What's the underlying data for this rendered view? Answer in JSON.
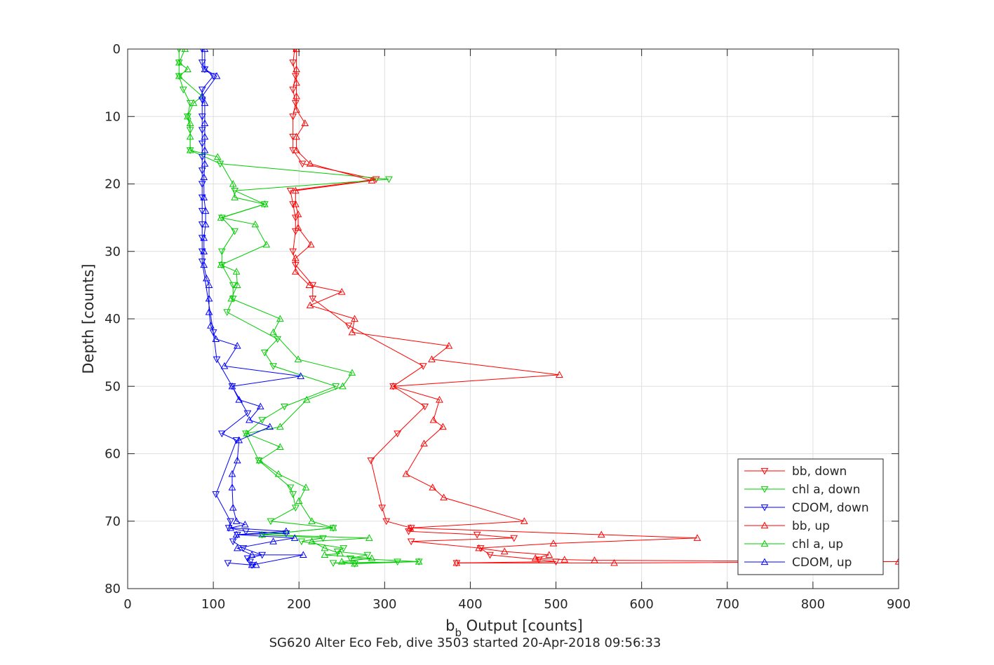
{
  "chart_data": {
    "type": "line",
    "title": "",
    "xlabel_main": "b",
    "xlabel_sub": "b",
    "xlabel_rest": " Output [counts]",
    "ylabel": "Depth [counts]",
    "caption": "SG620 Alter Eco Feb, dive 3503 started 20-Apr-2018 09:56:33",
    "xlim": [
      0,
      900
    ],
    "ylim": [
      0,
      80
    ],
    "y_reversed": true,
    "grid": true,
    "legend_position": "bottom-right",
    "xticks": [
      "0",
      "100",
      "200",
      "300",
      "400",
      "500",
      "600",
      "700",
      "800",
      "900"
    ],
    "yticks": [
      "0",
      "10",
      "20",
      "30",
      "40",
      "50",
      "60",
      "70",
      "80"
    ],
    "series": [
      {
        "name": "bb, down",
        "color": "#ff0000",
        "marker": "triangle-down",
        "points": [
          [
            195,
            0
          ],
          [
            193,
            2
          ],
          [
            196,
            4
          ],
          [
            193,
            6
          ],
          [
            196,
            8
          ],
          [
            193,
            10
          ],
          [
            193,
            13
          ],
          [
            193,
            15
          ],
          [
            204,
            17
          ],
          [
            290,
            19.3
          ],
          [
            190,
            21
          ],
          [
            193,
            23
          ],
          [
            196,
            25
          ],
          [
            196,
            27
          ],
          [
            193,
            30
          ],
          [
            196,
            32
          ],
          [
            216,
            35
          ],
          [
            216,
            37
          ],
          [
            258,
            41
          ],
          [
            345,
            47
          ],
          [
            310,
            50
          ],
          [
            347,
            53
          ],
          [
            315,
            57
          ],
          [
            284,
            61
          ],
          [
            297,
            68
          ],
          [
            302,
            70
          ],
          [
            331,
            71
          ],
          [
            328,
            71.5
          ],
          [
            408,
            72
          ],
          [
            451,
            72.5
          ],
          [
            331,
            73
          ],
          [
            412,
            74
          ],
          [
            423,
            75
          ],
          [
            480,
            75.7
          ],
          [
            500,
            76
          ],
          [
            384,
            76.2
          ]
        ]
      },
      {
        "name": "chl a, down",
        "color": "#00cc00",
        "marker": "triangle-down",
        "points": [
          [
            60,
            0
          ],
          [
            60,
            2
          ],
          [
            60,
            4
          ],
          [
            65,
            6
          ],
          [
            73,
            8
          ],
          [
            70,
            10
          ],
          [
            73,
            12
          ],
          [
            73,
            15
          ],
          [
            108,
            17
          ],
          [
            305,
            19.3
          ],
          [
            125,
            21
          ],
          [
            160,
            23
          ],
          [
            110,
            25
          ],
          [
            125,
            27
          ],
          [
            110,
            30
          ],
          [
            110,
            32
          ],
          [
            123,
            35
          ],
          [
            123,
            37
          ],
          [
            116,
            39
          ],
          [
            175,
            43
          ],
          [
            160,
            45
          ],
          [
            170,
            47
          ],
          [
            243,
            50
          ],
          [
            183,
            53
          ],
          [
            157,
            55
          ],
          [
            138,
            57
          ],
          [
            153,
            61
          ],
          [
            190,
            65
          ],
          [
            193,
            66
          ],
          [
            196,
            68
          ],
          [
            167,
            70
          ],
          [
            240,
            71
          ],
          [
            157,
            72
          ],
          [
            228,
            72.5
          ],
          [
            203,
            73
          ],
          [
            252,
            74
          ],
          [
            245,
            74.5
          ],
          [
            280,
            75
          ],
          [
            260,
            75.5
          ],
          [
            340,
            76
          ],
          [
            240,
            76.2
          ],
          [
            265,
            76.3
          ],
          [
            315,
            76
          ]
        ]
      },
      {
        "name": "CDOM, down",
        "color": "#0000ff",
        "marker": "triangle-down",
        "points": [
          [
            87,
            0
          ],
          [
            87,
            2
          ],
          [
            90,
            3
          ],
          [
            100,
            4
          ],
          [
            87,
            6
          ],
          [
            87,
            7.5
          ],
          [
            87,
            10
          ],
          [
            87,
            12
          ],
          [
            87,
            14
          ],
          [
            87,
            16
          ],
          [
            87,
            18
          ],
          [
            87,
            20
          ],
          [
            87,
            22
          ],
          [
            87,
            24
          ],
          [
            87,
            26
          ],
          [
            87,
            28
          ],
          [
            87,
            30
          ],
          [
            87,
            31.5
          ],
          [
            100,
            42
          ],
          [
            104,
            46
          ],
          [
            122,
            50
          ],
          [
            140,
            54
          ],
          [
            110,
            57
          ],
          [
            127,
            58
          ],
          [
            103,
            66
          ],
          [
            120,
            70
          ],
          [
            118,
            71
          ],
          [
            138,
            71.5
          ],
          [
            185,
            71.8
          ],
          [
            128,
            72
          ],
          [
            123,
            73
          ],
          [
            135,
            74
          ],
          [
            157,
            75
          ],
          [
            140,
            75.5
          ],
          [
            143,
            76
          ],
          [
            145,
            76.5
          ],
          [
            117,
            76.2
          ]
        ]
      },
      {
        "name": "bb, up",
        "color": "#ff0000",
        "marker": "triangle-up",
        "points": [
          [
            197,
            0
          ],
          [
            197,
            3
          ],
          [
            197,
            5
          ],
          [
            197,
            7
          ],
          [
            197,
            9
          ],
          [
            207,
            11
          ],
          [
            197,
            13
          ],
          [
            197,
            15
          ],
          [
            213,
            17
          ],
          [
            285,
            19.5
          ],
          [
            196,
            21
          ],
          [
            196,
            23
          ],
          [
            199,
            24.5
          ],
          [
            199,
            26.5
          ],
          [
            214,
            29
          ],
          [
            196,
            31
          ],
          [
            196,
            33
          ],
          [
            212,
            35
          ],
          [
            250,
            36
          ],
          [
            213,
            38
          ],
          [
            265,
            40
          ],
          [
            262,
            42
          ],
          [
            375,
            44
          ],
          [
            355,
            46
          ],
          [
            504,
            48.3
          ],
          [
            310,
            50
          ],
          [
            364,
            52
          ],
          [
            357,
            55
          ],
          [
            368,
            56
          ],
          [
            346,
            58.5
          ],
          [
            325,
            63
          ],
          [
            356,
            65
          ],
          [
            369,
            66.5
          ],
          [
            463,
            70
          ],
          [
            330,
            71
          ],
          [
            553,
            72
          ],
          [
            665,
            72.5
          ],
          [
            497,
            73.3
          ],
          [
            410,
            74
          ],
          [
            440,
            74.5
          ],
          [
            492,
            75
          ],
          [
            476,
            75.5
          ],
          [
            510,
            75.7
          ],
          [
            545,
            75.8
          ],
          [
            900,
            76
          ],
          [
            568,
            76.2
          ],
          [
            384,
            76.2
          ]
        ]
      },
      {
        "name": "chl a, up",
        "color": "#00cc00",
        "marker": "triangle-up",
        "points": [
          [
            67,
            0
          ],
          [
            60,
            2
          ],
          [
            70,
            3
          ],
          [
            60,
            4
          ],
          [
            87,
            7
          ],
          [
            77,
            8
          ],
          [
            70,
            10
          ],
          [
            73,
            11
          ],
          [
            73,
            13
          ],
          [
            73,
            15
          ],
          [
            105,
            16
          ],
          [
            123,
            20
          ],
          [
            125,
            22
          ],
          [
            160,
            23
          ],
          [
            109,
            25
          ],
          [
            149,
            26
          ],
          [
            162,
            29
          ],
          [
            109,
            32
          ],
          [
            127,
            33
          ],
          [
            128,
            35
          ],
          [
            121,
            37
          ],
          [
            178,
            40
          ],
          [
            170,
            42
          ],
          [
            199,
            46
          ],
          [
            262,
            48
          ],
          [
            251,
            50
          ],
          [
            209,
            52
          ],
          [
            178,
            56
          ],
          [
            139,
            57
          ],
          [
            178,
            59
          ],
          [
            154,
            61
          ],
          [
            176,
            63
          ],
          [
            208,
            65
          ],
          [
            200,
            67
          ],
          [
            215,
            70
          ],
          [
            240,
            71
          ],
          [
            157,
            72
          ],
          [
            282,
            72.5
          ],
          [
            215,
            73
          ],
          [
            230,
            74
          ],
          [
            248,
            74.8
          ],
          [
            230,
            75
          ],
          [
            285,
            75.5
          ],
          [
            250,
            76
          ],
          [
            265,
            76.3
          ],
          [
            340,
            76
          ]
        ]
      },
      {
        "name": "CDOM, up",
        "color": "#0000ff",
        "marker": "triangle-up",
        "points": [
          [
            90,
            0
          ],
          [
            90,
            3
          ],
          [
            104,
            4
          ],
          [
            87,
            7
          ],
          [
            90,
            8
          ],
          [
            90,
            11
          ],
          [
            90,
            13
          ],
          [
            90,
            15
          ],
          [
            90,
            17
          ],
          [
            89,
            19
          ],
          [
            89,
            22
          ],
          [
            91,
            24
          ],
          [
            91,
            26
          ],
          [
            89,
            28
          ],
          [
            89,
            30
          ],
          [
            89,
            32
          ],
          [
            92,
            34
          ],
          [
            95,
            35
          ],
          [
            95,
            37
          ],
          [
            95,
            39
          ],
          [
            97,
            41
          ],
          [
            103,
            43
          ],
          [
            128,
            44
          ],
          [
            113,
            47
          ],
          [
            202,
            48.5
          ],
          [
            122,
            50
          ],
          [
            130,
            52
          ],
          [
            155,
            53
          ],
          [
            142,
            55
          ],
          [
            166,
            56
          ],
          [
            130,
            58
          ],
          [
            128,
            61
          ],
          [
            122,
            63
          ],
          [
            122,
            65
          ],
          [
            123,
            68
          ],
          [
            127,
            70
          ],
          [
            137,
            70.5
          ],
          [
            120,
            71
          ],
          [
            185,
            71.5
          ],
          [
            127,
            72
          ],
          [
            195,
            72.5
          ],
          [
            170,
            73
          ],
          [
            128,
            74
          ],
          [
            145,
            75
          ],
          [
            205,
            75
          ],
          [
            145,
            76.5
          ],
          [
            150,
            76.5
          ]
        ]
      }
    ]
  }
}
